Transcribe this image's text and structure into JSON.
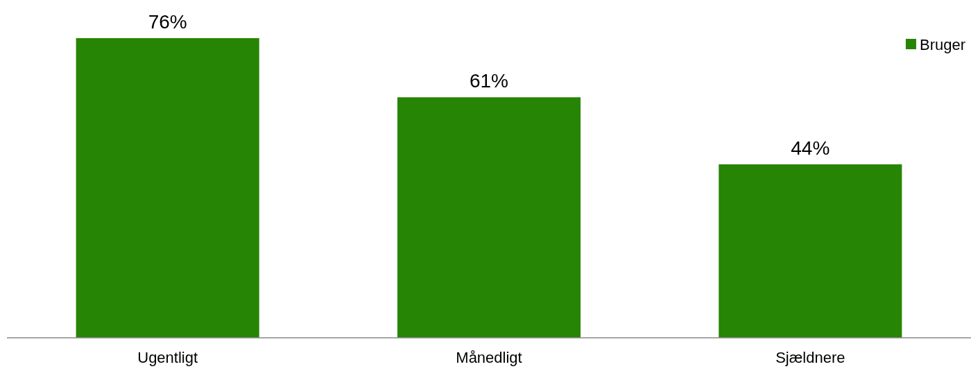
{
  "chart_data": {
    "type": "bar",
    "categories": [
      "Ugentligt",
      "Månedligt",
      "Sjældnere"
    ],
    "series": [
      {
        "name": "Bruger",
        "color": "#268504",
        "values": [
          76,
          61,
          44
        ],
        "value_labels": [
          "76%",
          "61%",
          "44%"
        ]
      }
    ],
    "legend": "top right",
    "tick_labels": "x",
    "grid": false
  }
}
